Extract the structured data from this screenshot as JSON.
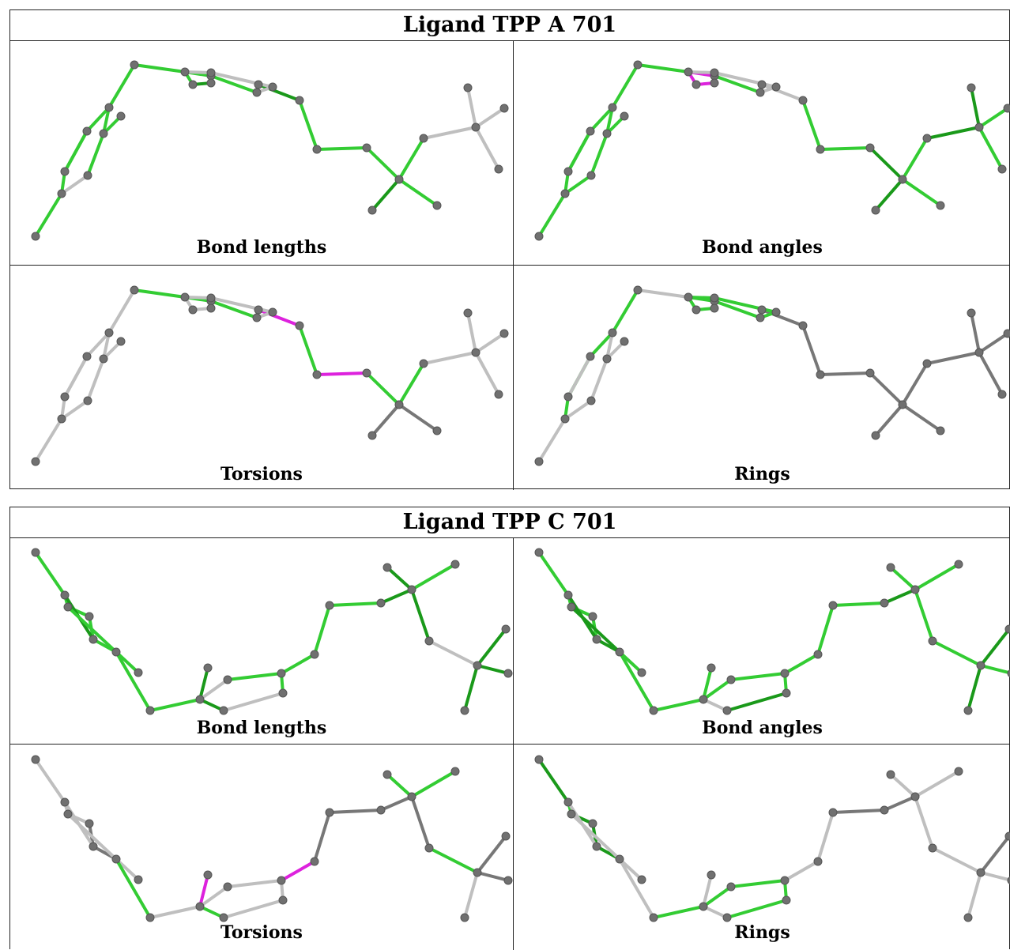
{
  "blocks": [
    {
      "id": "a",
      "title": "Ligand TPP A 701",
      "panels": [
        {
          "label": "Bond lengths"
        },
        {
          "label": "Bond angles"
        },
        {
          "label": "Torsions"
        },
        {
          "label": "Rings"
        }
      ]
    },
    {
      "id": "c",
      "title": "Ligand TPP C 701",
      "panels": [
        {
          "label": "Bond lengths"
        },
        {
          "label": "Bond angles"
        },
        {
          "label": "Torsions"
        },
        {
          "label": "Rings"
        }
      ]
    }
  ],
  "colors": {
    "good": "#33cc33",
    "good_dark": "#1a991a",
    "outlier": "#dd22dd",
    "neutral": "#bfbfbf",
    "neutral_dark": "#777777",
    "atom": "#707070",
    "border": "#222222"
  }
}
